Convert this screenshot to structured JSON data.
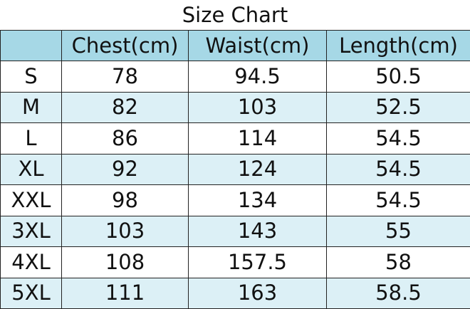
{
  "title": "Size Chart",
  "table": {
    "headers": [
      "Chest(cm)",
      "Waist(cm)",
      "Length(cm)"
    ],
    "rows": [
      [
        "S",
        78,
        94.5,
        50.5
      ],
      [
        "M",
        82,
        103,
        52.5
      ],
      [
        "L",
        86,
        114,
        54.5
      ],
      [
        "XL",
        92,
        124,
        54.5
      ],
      [
        "XXL",
        98,
        134,
        54.5
      ],
      [
        "3XL",
        103,
        143,
        55
      ],
      [
        "4XL",
        108,
        157.5,
        58
      ],
      [
        "5XL",
        111,
        163,
        58.5
      ]
    ]
  }
}
